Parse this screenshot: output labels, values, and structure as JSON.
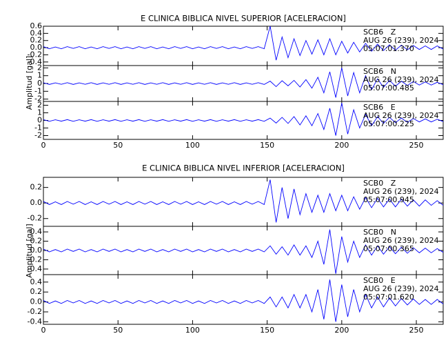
{
  "chart_data": [
    {
      "type": "line",
      "title": "E CLINICA BIBLICA NIVEL SUPERIOR [ACELERACION]",
      "ylabel": "Amplitud [gal]",
      "xlim": [
        0,
        268
      ],
      "xticks": [
        0,
        50,
        100,
        150,
        200,
        250
      ],
      "x": [
        0,
        4,
        8,
        12,
        16,
        20,
        24,
        28,
        32,
        36,
        40,
        44,
        48,
        52,
        56,
        60,
        64,
        68,
        72,
        76,
        80,
        84,
        88,
        92,
        96,
        100,
        104,
        108,
        112,
        116,
        120,
        124,
        128,
        132,
        136,
        140,
        144,
        148,
        152,
        156,
        160,
        164,
        168,
        172,
        176,
        180,
        184,
        188,
        192,
        196,
        200,
        204,
        208,
        212,
        216,
        220,
        224,
        228,
        232,
        236,
        240,
        244,
        248,
        252,
        256,
        260,
        264,
        268
      ],
      "panels": [
        {
          "ylim": [
            -0.5,
            0.6
          ],
          "yticks": [
            0.6,
            0.4,
            0.2,
            {
              "value": 0,
              "label": "0.0"
            },
            -0.2,
            -0.4
          ],
          "color": "#0000ff",
          "station": "SCB6   Z",
          "date": "AUG 26 (239), 2024",
          "time": "05:07:01.370",
          "values": [
            0.03,
            -0.03,
            0.02,
            -0.03,
            0.03,
            -0.02,
            0.03,
            -0.03,
            0.02,
            -0.03,
            0.03,
            -0.02,
            0.03,
            -0.03,
            0.02,
            -0.03,
            0.03,
            -0.02,
            0.03,
            -0.03,
            0.02,
            -0.03,
            0.03,
            -0.02,
            0.03,
            -0.03,
            0.02,
            -0.03,
            0.03,
            -0.02,
            0.03,
            -0.03,
            0.02,
            -0.03,
            0.03,
            -0.02,
            0.03,
            -0.03,
            0.6,
            -0.35,
            0.3,
            -0.28,
            0.25,
            -0.22,
            0.2,
            -0.18,
            0.22,
            -0.2,
            0.25,
            -0.2,
            0.18,
            -0.15,
            0.15,
            -0.12,
            0.12,
            -0.1,
            0.1,
            -0.08,
            0.08,
            -0.07,
            0.07,
            -0.06,
            0.06,
            -0.05,
            0.05,
            -0.05,
            0.05,
            -0.04
          ]
        },
        {
          "ylim": [
            -2.3,
            2.3
          ],
          "yticks": [
            2,
            1,
            0,
            -1,
            -2
          ],
          "color": "#0000ff",
          "station": "SCB6   N",
          "date": "AUG 26 (239), 2024",
          "time": "05:07:00.485",
          "values": [
            0.1,
            -0.12,
            0.08,
            -0.1,
            0.1,
            -0.12,
            0.08,
            -0.1,
            0.1,
            -0.12,
            0.08,
            -0.1,
            0.1,
            -0.12,
            0.08,
            -0.1,
            0.1,
            -0.12,
            0.08,
            -0.1,
            0.1,
            -0.12,
            0.08,
            -0.1,
            0.1,
            -0.12,
            0.08,
            -0.1,
            0.1,
            -0.12,
            0.08,
            -0.1,
            0.1,
            -0.12,
            0.08,
            -0.1,
            0.1,
            -0.12,
            0.3,
            -0.4,
            0.35,
            -0.3,
            0.4,
            -0.45,
            0.5,
            -0.6,
            0.8,
            -1.2,
            1.5,
            -1.8,
            2.0,
            -1.6,
            1.4,
            -1.2,
            1.0,
            -0.8,
            0.6,
            -0.5,
            0.4,
            -0.35,
            0.3,
            -0.25,
            0.25,
            -0.2,
            0.2,
            -0.2,
            0.15,
            -0.15
          ]
        },
        {
          "ylim": [
            -2.5,
            2.5
          ],
          "yticks": [
            2,
            1,
            0,
            -1,
            -2
          ],
          "color": "#0000ff",
          "station": "SCB6   E",
          "date": "AUG 26 (239), 2024",
          "time": "05:07:00.225",
          "values": [
            0.1,
            -0.12,
            0.08,
            -0.1,
            0.1,
            -0.12,
            0.08,
            -0.1,
            0.1,
            -0.12,
            0.08,
            -0.1,
            0.1,
            -0.12,
            0.08,
            -0.1,
            0.1,
            -0.12,
            0.08,
            -0.1,
            0.1,
            -0.12,
            0.08,
            -0.1,
            0.1,
            -0.12,
            0.08,
            -0.1,
            0.1,
            -0.12,
            0.08,
            -0.1,
            0.1,
            -0.12,
            0.08,
            -0.1,
            0.1,
            -0.12,
            0.3,
            -0.35,
            0.4,
            -0.4,
            0.5,
            -0.6,
            0.6,
            -0.7,
            0.9,
            -1.2,
            1.6,
            -2.0,
            2.3,
            -1.8,
            1.4,
            -1.0,
            0.8,
            -0.7,
            0.5,
            -0.4,
            0.4,
            -0.3,
            0.3,
            -0.25,
            0.25,
            -0.2,
            0.2,
            -0.2,
            0.15,
            -0.15
          ]
        }
      ]
    },
    {
      "type": "line",
      "title": "E CLINICA BIBLICA NIVEL INFERIOR [ACELERACION]",
      "ylabel": "Amplitud [gal]",
      "xlim": [
        0,
        268
      ],
      "xticks": [
        0,
        50,
        100,
        150,
        200,
        250
      ],
      "x": [
        0,
        4,
        8,
        12,
        16,
        20,
        24,
        28,
        32,
        36,
        40,
        44,
        48,
        52,
        56,
        60,
        64,
        68,
        72,
        76,
        80,
        84,
        88,
        92,
        96,
        100,
        104,
        108,
        112,
        116,
        120,
        124,
        128,
        132,
        136,
        140,
        144,
        148,
        152,
        156,
        160,
        164,
        168,
        172,
        176,
        180,
        184,
        188,
        192,
        196,
        200,
        204,
        208,
        212,
        216,
        220,
        224,
        228,
        232,
        236,
        240,
        244,
        248,
        252,
        256,
        260,
        264,
        268
      ],
      "panels": [
        {
          "ylim": [
            -0.3,
            0.33
          ],
          "yticks": [
            0.2,
            {
              "value": 0,
              "label": "0.0"
            },
            -0.2
          ],
          "color": "#0000ff",
          "station": "SCB0   Z",
          "date": "AUG 26 (239), 2024",
          "time": "05:07:00.945",
          "values": [
            0.02,
            -0.02,
            0.015,
            -0.02,
            0.02,
            -0.015,
            0.02,
            -0.02,
            0.015,
            -0.02,
            0.02,
            -0.015,
            0.02,
            -0.02,
            0.015,
            -0.02,
            0.02,
            -0.015,
            0.02,
            -0.02,
            0.015,
            -0.02,
            0.02,
            -0.015,
            0.02,
            -0.02,
            0.015,
            -0.02,
            0.02,
            -0.015,
            0.02,
            -0.02,
            0.015,
            -0.02,
            0.02,
            -0.015,
            0.02,
            -0.02,
            0.3,
            -0.25,
            0.2,
            -0.2,
            0.18,
            -0.15,
            0.12,
            -0.12,
            0.1,
            -0.12,
            0.12,
            -0.1,
            0.1,
            -0.1,
            0.08,
            -0.08,
            0.07,
            -0.06,
            0.06,
            -0.05,
            0.05,
            -0.05,
            0.05,
            -0.04,
            0.04,
            -0.04,
            0.04,
            -0.03,
            0.03,
            -0.03
          ]
        },
        {
          "ylim": [
            -0.52,
            0.52
          ],
          "yticks": [
            0.4,
            0.2,
            {
              "value": 0,
              "label": "0.0"
            },
            -0.2,
            -0.4
          ],
          "color": "#0000ff",
          "station": "SCB0   N",
          "date": "AUG 26 (239), 2024",
          "time": "05:07:00.365",
          "values": [
            0.03,
            -0.03,
            0.02,
            -0.03,
            0.03,
            -0.02,
            0.03,
            -0.03,
            0.02,
            -0.03,
            0.03,
            -0.02,
            0.03,
            -0.03,
            0.02,
            -0.03,
            0.03,
            -0.02,
            0.03,
            -0.03,
            0.02,
            -0.03,
            0.03,
            -0.02,
            0.03,
            -0.03,
            0.02,
            -0.03,
            0.03,
            -0.02,
            0.03,
            -0.03,
            0.02,
            -0.03,
            0.03,
            -0.02,
            0.03,
            -0.03,
            0.1,
            -0.08,
            0.08,
            -0.1,
            0.12,
            -0.1,
            0.1,
            -0.15,
            0.2,
            -0.3,
            0.45,
            -0.5,
            0.3,
            -0.25,
            0.2,
            -0.15,
            0.12,
            -0.1,
            0.1,
            -0.08,
            0.08,
            -0.07,
            0.07,
            -0.06,
            0.06,
            -0.05,
            0.05,
            -0.05,
            0.04,
            -0.04
          ]
        },
        {
          "ylim": [
            -0.45,
            0.55
          ],
          "yticks": [
            0.4,
            0.2,
            {
              "value": 0,
              "label": "0.0"
            },
            -0.2,
            -0.4
          ],
          "color": "#0000ff",
          "station": "SCB0   E",
          "date": "AUG 26 (239), 2024",
          "time": "05:07:01.620",
          "values": [
            0.03,
            -0.03,
            0.02,
            -0.03,
            0.03,
            -0.02,
            0.03,
            -0.03,
            0.02,
            -0.03,
            0.03,
            -0.02,
            0.03,
            -0.03,
            0.02,
            -0.03,
            0.03,
            -0.02,
            0.03,
            -0.03,
            0.02,
            -0.03,
            0.03,
            -0.02,
            0.03,
            -0.03,
            0.02,
            -0.03,
            0.03,
            -0.02,
            0.03,
            -0.03,
            0.02,
            -0.03,
            0.03,
            -0.02,
            0.03,
            -0.03,
            0.1,
            -0.1,
            0.1,
            -0.12,
            0.15,
            -0.12,
            0.15,
            -0.2,
            0.25,
            -0.35,
            0.45,
            -0.4,
            0.35,
            -0.3,
            0.25,
            -0.2,
            0.15,
            -0.12,
            0.1,
            -0.1,
            0.08,
            -0.08,
            0.07,
            -0.06,
            0.06,
            -0.05,
            0.05,
            -0.05,
            0.05,
            -0.04
          ]
        }
      ]
    }
  ]
}
